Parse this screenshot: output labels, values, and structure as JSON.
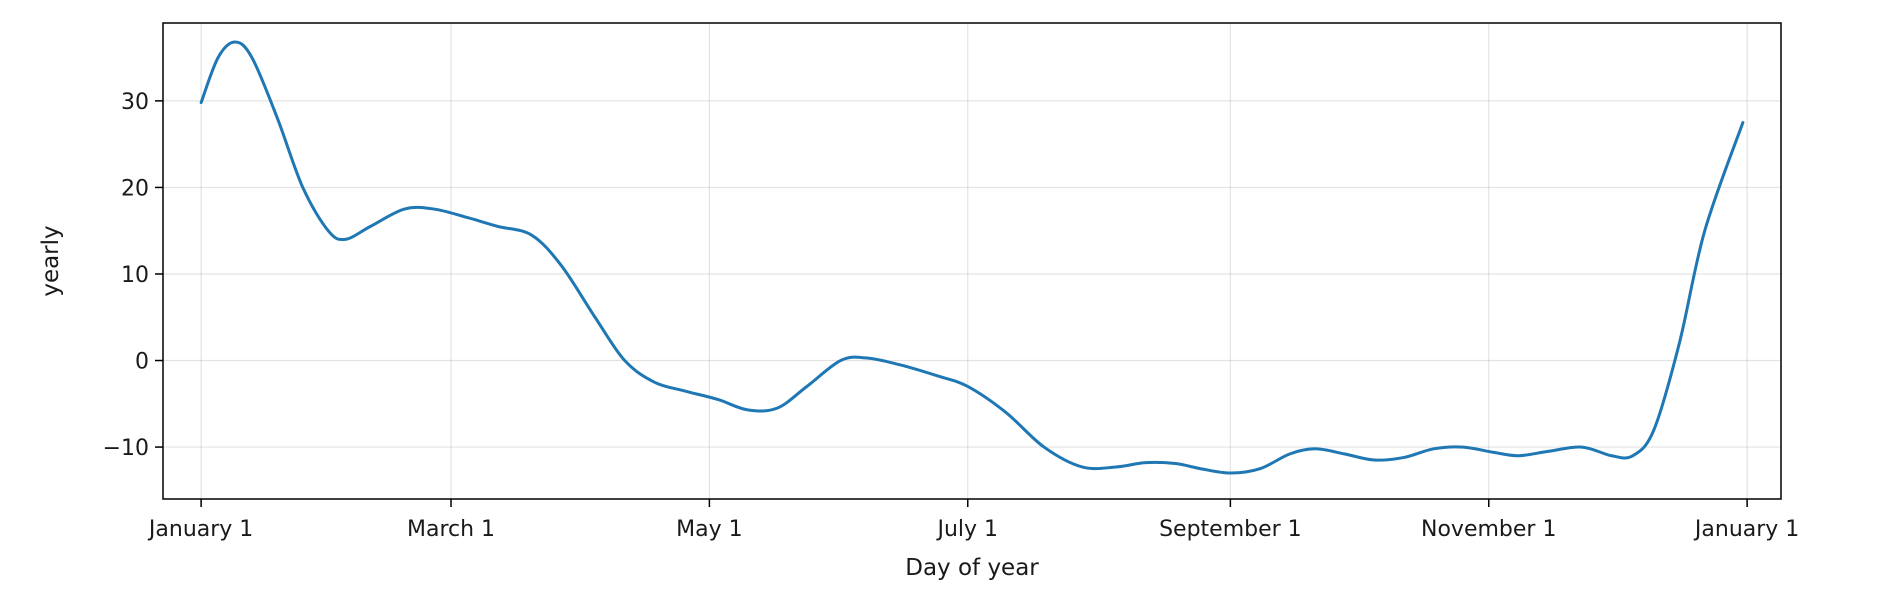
{
  "chart_data": {
    "type": "line",
    "title": "",
    "xlabel": "Day of year",
    "ylabel": "yearly",
    "xlim": [
      "2016-12-23",
      "2018-01-09"
    ],
    "ylim": [
      -16,
      39
    ],
    "grid": true,
    "legend": "none",
    "x_ticks": [
      {
        "date": "2017-01-01",
        "label": "January 1"
      },
      {
        "date": "2017-03-01",
        "label": "March 1"
      },
      {
        "date": "2017-05-01",
        "label": "May 1"
      },
      {
        "date": "2017-07-01",
        "label": "July 1"
      },
      {
        "date": "2017-09-01",
        "label": "September 1"
      },
      {
        "date": "2017-11-01",
        "label": "November 1"
      },
      {
        "date": "2018-01-01",
        "label": "January 1"
      }
    ],
    "y_ticks": [
      -10,
      0,
      10,
      20,
      30
    ],
    "series": [
      {
        "color": "#1f77b4",
        "points": [
          {
            "x": "2017-01-01",
            "y": 29.8
          },
          {
            "x": "2017-01-05",
            "y": 35.0
          },
          {
            "x": "2017-01-09",
            "y": 36.8
          },
          {
            "x": "2017-01-13",
            "y": 35.0
          },
          {
            "x": "2017-01-19",
            "y": 28.0
          },
          {
            "x": "2017-01-25",
            "y": 20.0
          },
          {
            "x": "2017-01-31",
            "y": 15.0
          },
          {
            "x": "2017-02-04",
            "y": 14.0
          },
          {
            "x": "2017-02-10",
            "y": 15.5
          },
          {
            "x": "2017-02-18",
            "y": 17.5
          },
          {
            "x": "2017-02-25",
            "y": 17.5
          },
          {
            "x": "2017-03-05",
            "y": 16.5
          },
          {
            "x": "2017-03-12",
            "y": 15.5
          },
          {
            "x": "2017-03-20",
            "y": 14.5
          },
          {
            "x": "2017-03-27",
            "y": 11.0
          },
          {
            "x": "2017-04-04",
            "y": 5.0
          },
          {
            "x": "2017-04-11",
            "y": 0.0
          },
          {
            "x": "2017-04-18",
            "y": -2.5
          },
          {
            "x": "2017-04-25",
            "y": -3.5
          },
          {
            "x": "2017-05-03",
            "y": -4.5
          },
          {
            "x": "2017-05-10",
            "y": -5.7
          },
          {
            "x": "2017-05-17",
            "y": -5.5
          },
          {
            "x": "2017-05-24",
            "y": -3.0
          },
          {
            "x": "2017-06-01",
            "y": 0.0
          },
          {
            "x": "2017-06-07",
            "y": 0.3
          },
          {
            "x": "2017-06-15",
            "y": -0.5
          },
          {
            "x": "2017-06-24",
            "y": -1.8
          },
          {
            "x": "2017-07-01",
            "y": -3.0
          },
          {
            "x": "2017-07-10",
            "y": -6.0
          },
          {
            "x": "2017-07-19",
            "y": -10.0
          },
          {
            "x": "2017-07-28",
            "y": -12.3
          },
          {
            "x": "2017-08-05",
            "y": -12.3
          },
          {
            "x": "2017-08-12",
            "y": -11.8
          },
          {
            "x": "2017-08-19",
            "y": -11.9
          },
          {
            "x": "2017-08-25",
            "y": -12.5
          },
          {
            "x": "2017-09-01",
            "y": -13.0
          },
          {
            "x": "2017-09-08",
            "y": -12.5
          },
          {
            "x": "2017-09-15",
            "y": -10.8
          },
          {
            "x": "2017-09-21",
            "y": -10.2
          },
          {
            "x": "2017-09-28",
            "y": -10.8
          },
          {
            "x": "2017-10-05",
            "y": -11.5
          },
          {
            "x": "2017-10-12",
            "y": -11.2
          },
          {
            "x": "2017-10-19",
            "y": -10.2
          },
          {
            "x": "2017-10-26",
            "y": -10.0
          },
          {
            "x": "2017-11-02",
            "y": -10.6
          },
          {
            "x": "2017-11-08",
            "y": -11.0
          },
          {
            "x": "2017-11-15",
            "y": -10.5
          },
          {
            "x": "2017-11-23",
            "y": -10.0
          },
          {
            "x": "2017-11-30",
            "y": -11.0
          },
          {
            "x": "2017-12-05",
            "y": -11.0
          },
          {
            "x": "2017-12-10",
            "y": -8.0
          },
          {
            "x": "2017-12-16",
            "y": 2.0
          },
          {
            "x": "2017-12-22",
            "y": 15.0
          },
          {
            "x": "2017-12-31",
            "y": 27.5
          }
        ]
      }
    ]
  }
}
